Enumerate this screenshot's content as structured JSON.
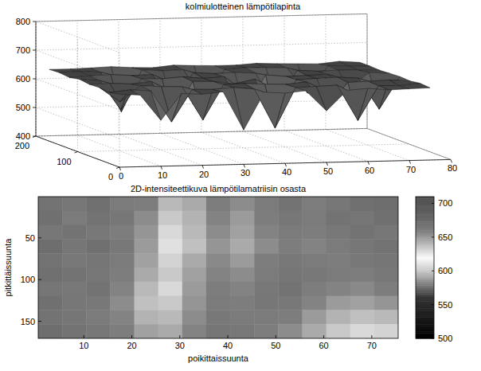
{
  "chart_data": [
    {
      "type": "surface",
      "title": "kolmiulotteinen lämpötilapinta",
      "xlim": [
        0,
        80
      ],
      "xticks": [
        0,
        10,
        20,
        30,
        40,
        50,
        60,
        70,
        80
      ],
      "ylim": [
        0,
        200
      ],
      "yticks": [
        0,
        100,
        200
      ],
      "zlim": [
        400,
        800
      ],
      "zticks": [
        400,
        500,
        600,
        700,
        800
      ],
      "grid": true,
      "x": [
        0,
        5,
        10,
        15,
        20,
        25,
        30,
        35,
        40,
        45,
        50,
        55,
        60,
        65,
        70,
        75
      ],
      "y": [
        0,
        24,
        48,
        72,
        96,
        120,
        144,
        168
      ],
      "z": [
        [
          655,
          650,
          560,
          652,
          648,
          655,
          520,
          650,
          645,
          652,
          580,
          650,
          655,
          648,
          650,
          652
        ],
        [
          648,
          655,
          650,
          540,
          652,
          650,
          655,
          648,
          510,
          650,
          652,
          655,
          530,
          650,
          648,
          655
        ],
        [
          652,
          600,
          655,
          650,
          648,
          530,
          652,
          655,
          650,
          648,
          655,
          560,
          650,
          652,
          655,
          650
        ],
        [
          650,
          652,
          648,
          655,
          520,
          652,
          650,
          640,
          655,
          500,
          650,
          652,
          655,
          650,
          540,
          652
        ],
        [
          655,
          648,
          545,
          652,
          650,
          655,
          648,
          652,
          530,
          655,
          648,
          650,
          652,
          600,
          655,
          650
        ],
        [
          648,
          652,
          655,
          650,
          652,
          560,
          655,
          650,
          652,
          648,
          520,
          655,
          650,
          652,
          650,
          648
        ],
        [
          652,
          655,
          650,
          510,
          655,
          650,
          652,
          540,
          650,
          655,
          652,
          650,
          560,
          655,
          652,
          650
        ],
        [
          650,
          650,
          652,
          655,
          650,
          648,
          655,
          652,
          650,
          650,
          655,
          652,
          650,
          648,
          655,
          650
        ]
      ]
    },
    {
      "type": "heatmap",
      "title": "2D-intensiteettikuva lämpötilamatriisin osasta",
      "xlabel": "poikittaissuunta",
      "ylabel": "pitkittäissuunta",
      "xlim": [
        0.5,
        75.5
      ],
      "xticks": [
        10,
        20,
        30,
        40,
        50,
        60,
        70
      ],
      "ylim": [
        0.5,
        170.5
      ],
      "yticks": [
        50,
        100,
        150
      ],
      "colorbar_range": [
        500,
        710
      ],
      "colorbar_ticks": [
        500,
        550,
        600,
        650,
        700
      ],
      "cells": [
        [
          668,
          665,
          670,
          662,
          660,
          640,
          645,
          660,
          655,
          662,
          668,
          660,
          665,
          670,
          672
        ],
        [
          670,
          662,
          668,
          665,
          655,
          635,
          642,
          658,
          650,
          660,
          665,
          662,
          668,
          666,
          670
        ],
        [
          665,
          668,
          664,
          660,
          652,
          630,
          640,
          655,
          648,
          658,
          662,
          660,
          664,
          668,
          665
        ],
        [
          672,
          666,
          670,
          664,
          650,
          628,
          638,
          652,
          645,
          655,
          660,
          658,
          662,
          665,
          668
        ],
        [
          668,
          664,
          666,
          662,
          648,
          632,
          645,
          656,
          650,
          660,
          664,
          662,
          660,
          664,
          666
        ],
        [
          670,
          668,
          665,
          660,
          645,
          635,
          648,
          658,
          655,
          662,
          666,
          664,
          662,
          660,
          664
        ],
        [
          666,
          664,
          668,
          658,
          640,
          630,
          650,
          660,
          658,
          664,
          668,
          660,
          658,
          656,
          660
        ],
        [
          670,
          665,
          664,
          655,
          638,
          635,
          652,
          662,
          660,
          665,
          664,
          658,
          650,
          648,
          652
        ],
        [
          668,
          666,
          662,
          658,
          642,
          640,
          655,
          664,
          662,
          662,
          660,
          650,
          642,
          638,
          640
        ],
        [
          672,
          668,
          665,
          660,
          648,
          645,
          658,
          666,
          664,
          660,
          655,
          645,
          635,
          630,
          632
        ]
      ]
    }
  ]
}
